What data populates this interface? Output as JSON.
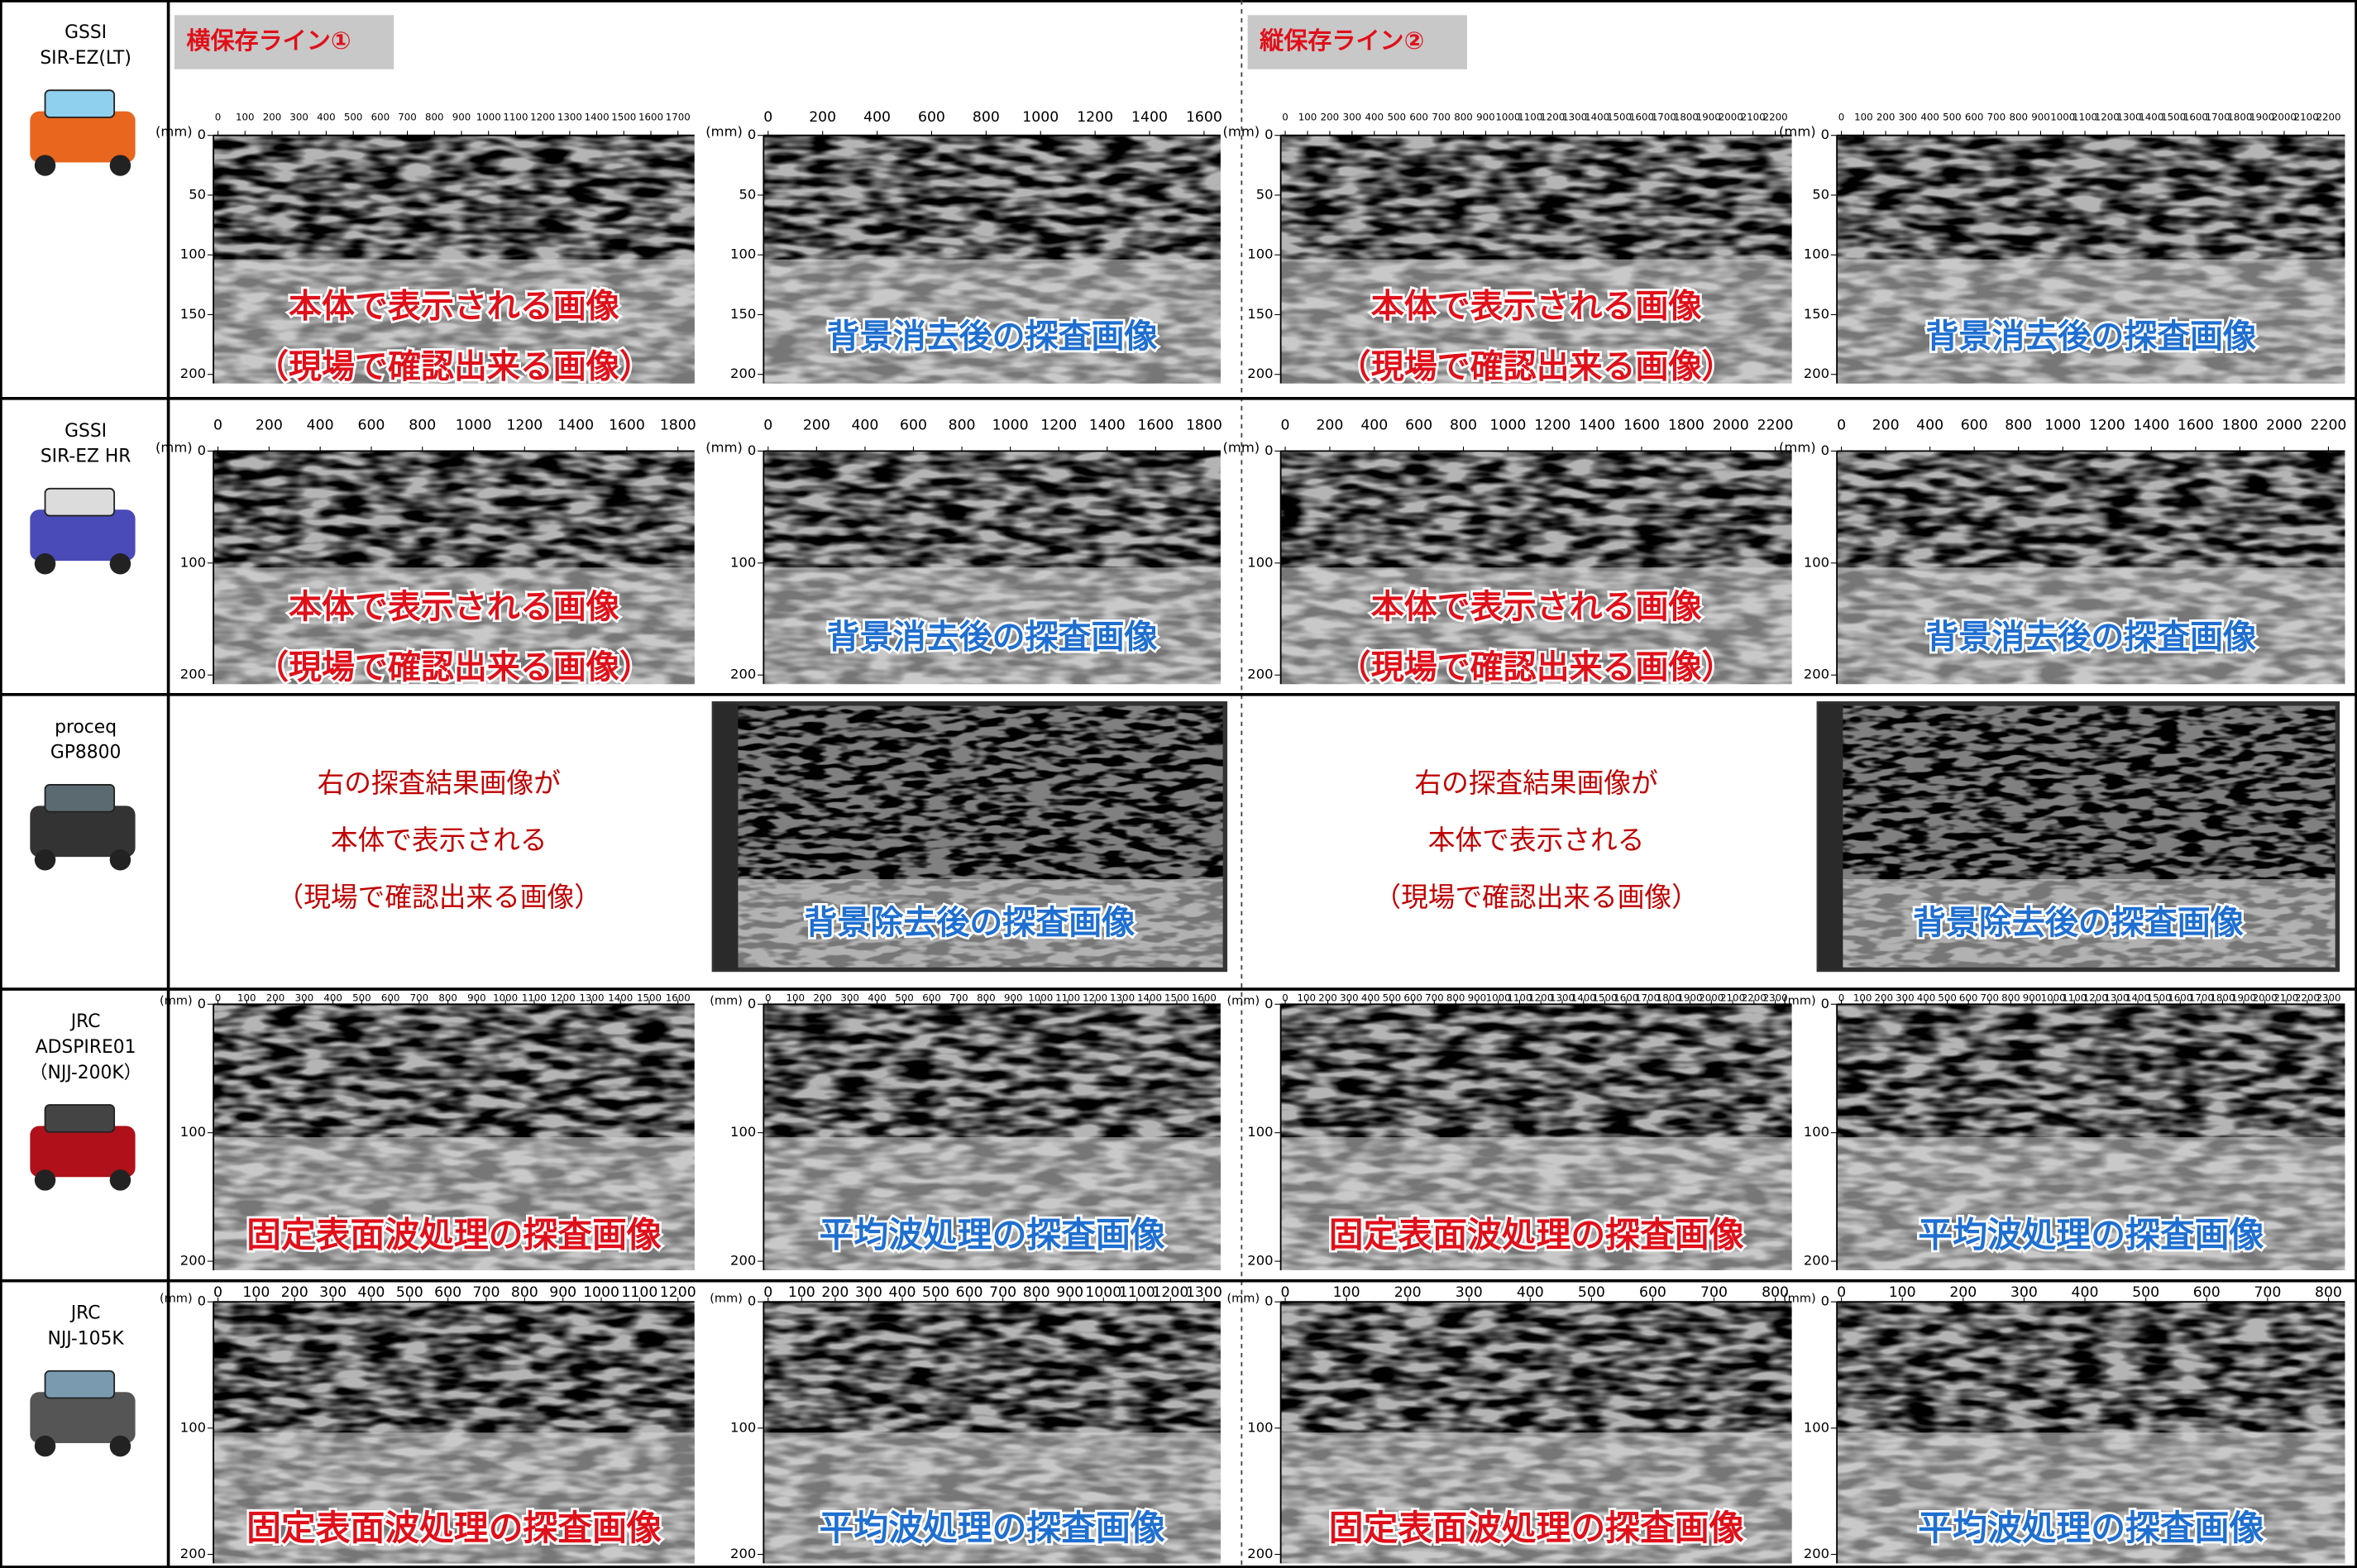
{
  "sections": [
    {
      "label": "横保存ライン①"
    },
    {
      "label": "縦保存ライン②"
    }
  ],
  "rows": [
    {
      "device": [
        "GSSI",
        "SIR-EZ(LT)"
      ],
      "panels": [
        {
          "unit": "(mm)",
          "xticks": [
            0,
            100,
            200,
            300,
            400,
            500,
            600,
            700,
            800,
            900,
            1000,
            1100,
            1200,
            1300,
            1400,
            1500,
            1600,
            1700
          ],
          "yticks": [
            0,
            50,
            100,
            150,
            200
          ],
          "caption": [
            "本体で表示される画像",
            "（現場で確認出来る画像）"
          ],
          "caption_color": "#e0101a"
        },
        {
          "unit": "(mm)",
          "xticks": [
            0,
            200,
            400,
            600,
            800,
            1000,
            1200,
            1400,
            1600
          ],
          "yticks": [
            0,
            50,
            100,
            150,
            200
          ],
          "caption": [
            "背景消去後の探査画像"
          ],
          "caption_color": "#1f6fd0"
        },
        {
          "unit": "(mm)",
          "xticks": [
            0,
            100,
            200,
            300,
            400,
            500,
            600,
            700,
            800,
            900,
            1000,
            1100,
            1200,
            1300,
            1400,
            1500,
            1600,
            1700,
            1800,
            1900,
            2000,
            2100,
            2200
          ],
          "yticks": [
            0,
            50,
            100,
            150,
            200
          ],
          "caption": [
            "本体で表示される画像",
            "（現場で確認出来る画像）"
          ],
          "caption_color": "#e0101a"
        },
        {
          "unit": "(mm)",
          "xticks": [
            0,
            100,
            200,
            300,
            400,
            500,
            600,
            700,
            800,
            900,
            1000,
            1100,
            1200,
            1300,
            1400,
            1500,
            1600,
            1700,
            1800,
            1900,
            2000,
            2100,
            2200
          ],
          "yticks": [
            0,
            50,
            100,
            150,
            200
          ],
          "caption": [
            "背景消去後の探査画像"
          ],
          "caption_color": "#1f6fd0"
        }
      ]
    },
    {
      "device": [
        "GSSI",
        "SIR-EZ HR"
      ],
      "panels": [
        {
          "unit": "(mm)",
          "xticks": [
            0,
            200,
            400,
            600,
            800,
            1000,
            1200,
            1400,
            1600,
            1800
          ],
          "yticks": [
            0,
            100,
            200
          ],
          "caption": [
            "本体で表示される画像",
            "（現場で確認出来る画像）"
          ],
          "caption_color": "#e0101a"
        },
        {
          "unit": "(mm)",
          "xticks": [
            0,
            200,
            400,
            600,
            800,
            1000,
            1200,
            1400,
            1600,
            1800
          ],
          "yticks": [
            0,
            100,
            200
          ],
          "caption": [
            "背景消去後の探査画像"
          ],
          "caption_color": "#1f6fd0"
        },
        {
          "unit": "(mm)",
          "xticks": [
            0,
            200,
            400,
            600,
            800,
            1000,
            1200,
            1400,
            1600,
            1800,
            2000,
            2200
          ],
          "yticks": [
            0,
            100,
            200
          ],
          "caption": [
            "本体で表示される画像",
            "（現場で確認出来る画像）"
          ],
          "caption_color": "#e0101a"
        },
        {
          "unit": "(mm)",
          "xticks": [
            0,
            200,
            400,
            600,
            800,
            1000,
            1200,
            1400,
            1600,
            1800,
            2000,
            2200
          ],
          "yticks": [
            0,
            100,
            200
          ],
          "caption": [
            "背景消去後の探査画像"
          ],
          "caption_color": "#1f6fd0"
        }
      ]
    },
    {
      "device": [
        "proceq",
        "GP8800"
      ],
      "panels": [
        {
          "text": [
            "右の探査結果画像が",
            "本体で表示される",
            "（現場で確認出来る画像）"
          ],
          "caption_color": "#c00000"
        },
        {
          "caption": [
            "背景除去後の探査画像"
          ],
          "caption_color": "#1f6fd0"
        },
        {
          "text": [
            "右の探査結果画像が",
            "本体で表示される",
            "（現場で確認出来る画像）"
          ],
          "caption_color": "#c00000"
        },
        {
          "caption": [
            "背景除去後の探査画像"
          ],
          "caption_color": "#1f6fd0"
        }
      ]
    },
    {
      "device": [
        "JRC",
        "ADSPIRE01",
        "（NJJ-200K）"
      ],
      "panels": [
        {
          "unit": "(mm)",
          "xticks": [
            0,
            100,
            200,
            300,
            400,
            500,
            600,
            700,
            800,
            900,
            1000,
            1100,
            1200,
            1300,
            1400,
            1500,
            1600
          ],
          "yticks": [
            0,
            100,
            200
          ],
          "caption": [
            "固定表面波処理の探査画像"
          ],
          "caption_color": "#e0101a"
        },
        {
          "unit": "(mm)",
          "xticks": [
            0,
            100,
            200,
            300,
            400,
            500,
            600,
            700,
            800,
            900,
            1000,
            1100,
            1200,
            1300,
            1400,
            1500,
            1600
          ],
          "yticks": [
            0,
            100,
            200
          ],
          "caption": [
            "平均波処理の探査画像"
          ],
          "caption_color": "#1f6fd0"
        },
        {
          "unit": "(mm)",
          "xticks": [
            0,
            100,
            200,
            300,
            400,
            500,
            600,
            700,
            800,
            900,
            1000,
            1100,
            1200,
            1300,
            1400,
            1500,
            1600,
            1700,
            1800,
            1900,
            2000,
            2100,
            2200,
            2300
          ],
          "yticks": [
            0,
            100,
            200
          ],
          "caption": [
            "固定表面波処理の探査画像"
          ],
          "caption_color": "#e0101a"
        },
        {
          "unit": "(mm)",
          "xticks": [
            0,
            100,
            200,
            300,
            400,
            500,
            600,
            700,
            800,
            900,
            1000,
            1100,
            1200,
            1300,
            1400,
            1500,
            1600,
            1700,
            1800,
            1900,
            2000,
            2100,
            2200,
            2300
          ],
          "yticks": [
            0,
            100,
            200
          ],
          "caption": [
            "平均波処理の探査画像"
          ],
          "caption_color": "#1f6fd0"
        }
      ]
    },
    {
      "device": [
        "JRC",
        "NJJ-105K"
      ],
      "panels": [
        {
          "unit": "(mm)",
          "xticks": [
            0,
            100,
            200,
            300,
            400,
            500,
            600,
            700,
            800,
            900,
            1000,
            1100,
            1200
          ],
          "yticks": [
            0,
            100,
            200
          ],
          "caption": [
            "固定表面波処理の探査画像"
          ],
          "caption_color": "#e0101a"
        },
        {
          "unit": "(mm)",
          "xticks": [
            0,
            100,
            200,
            300,
            400,
            500,
            600,
            700,
            800,
            900,
            1000,
            1100,
            1200,
            1300
          ],
          "yticks": [
            0,
            100,
            200
          ],
          "caption": [
            "平均波処理の探査画像"
          ],
          "caption_color": "#1f6fd0"
        },
        {
          "unit": "(mm)",
          "xticks": [
            0,
            100,
            200,
            300,
            400,
            500,
            600,
            700,
            800
          ],
          "yticks": [
            0,
            100,
            200
          ],
          "caption": [
            "固定表面波処理の探査画像"
          ],
          "caption_color": "#e0101a"
        },
        {
          "unit": "(mm)",
          "xticks": [
            0,
            100,
            200,
            300,
            400,
            500,
            600,
            700,
            800
          ],
          "yticks": [
            0,
            100,
            200
          ],
          "caption": [
            "平均波処理の探査画像"
          ],
          "caption_color": "#1f6fd0"
        }
      ]
    }
  ]
}
